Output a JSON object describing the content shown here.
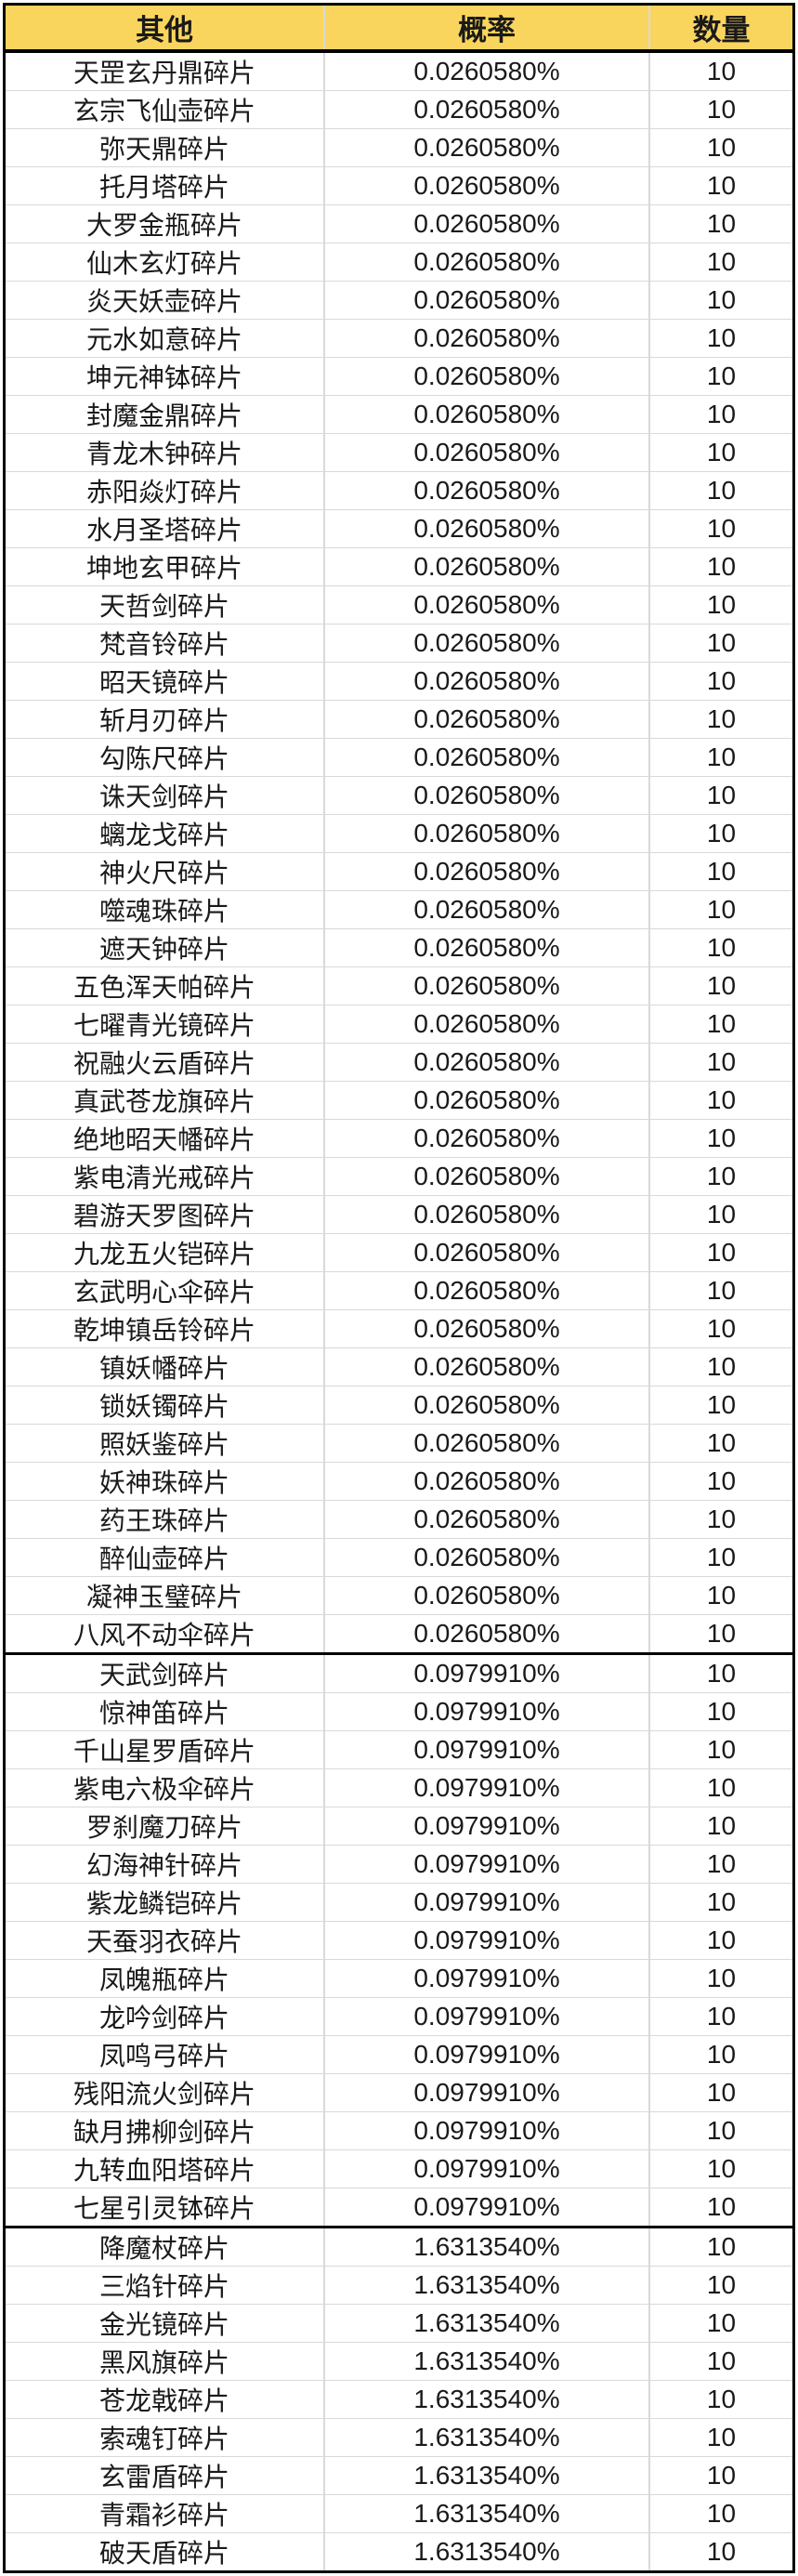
{
  "table": {
    "header": {
      "item_label": "其他",
      "probability_label": "概率",
      "quantity_label": "数量"
    },
    "groups": [
      {
        "probability": "0.0260580%",
        "quantity": "10",
        "items": [
          "天罡玄丹鼎碎片",
          "玄宗飞仙壶碎片",
          "弥天鼎碎片",
          "托月塔碎片",
          "大罗金瓶碎片",
          "仙木玄灯碎片",
          "炎天妖壶碎片",
          "元水如意碎片",
          "坤元神钵碎片",
          "封魔金鼎碎片",
          "青龙木钟碎片",
          "赤阳焱灯碎片",
          "水月圣塔碎片",
          "坤地玄甲碎片",
          "天哲剑碎片",
          "梵音铃碎片",
          "昭天镜碎片",
          "斩月刃碎片",
          "勾陈尺碎片",
          "诛天剑碎片",
          "螭龙戈碎片",
          "神火尺碎片",
          "噬魂珠碎片",
          "遮天钟碎片",
          "五色浑天帕碎片",
          "七曜青光镜碎片",
          "祝融火云盾碎片",
          "真武苍龙旗碎片",
          "绝地昭天幡碎片",
          "紫电清光戒碎片",
          "碧游天罗图碎片",
          "九龙五火铠碎片",
          "玄武明心伞碎片",
          "乾坤镇岳铃碎片",
          "镇妖幡碎片",
          "锁妖镯碎片",
          "照妖鉴碎片",
          "妖神珠碎片",
          "药王珠碎片",
          "醉仙壶碎片",
          "凝神玉璧碎片",
          "八风不动伞碎片"
        ]
      },
      {
        "probability": "0.0979910%",
        "quantity": "10",
        "items": [
          "天武剑碎片",
          "惊神笛碎片",
          "千山星罗盾碎片",
          "紫电六极伞碎片",
          "罗刹魔刀碎片",
          "幻海神针碎片",
          "紫龙鳞铠碎片",
          "天蚕羽衣碎片",
          "凤魄瓶碎片",
          "龙吟剑碎片",
          "凤鸣弓碎片",
          "残阳流火剑碎片",
          "缺月拂柳剑碎片",
          "九转血阳塔碎片",
          "七星引灵钵碎片"
        ]
      },
      {
        "probability": "1.6313540%",
        "quantity": "10",
        "items": [
          "降魔杖碎片",
          "三焰针碎片",
          "金光镜碎片",
          "黑风旗碎片",
          "苍龙戟碎片",
          "索魂钉碎片",
          "玄雷盾碎片",
          "青霜衫碎片",
          "破天盾碎片"
        ]
      }
    ]
  },
  "colors": {
    "header_bg": "#FAD55E",
    "grid_line": "#D9D9D9",
    "heavy_line": "#000000"
  }
}
